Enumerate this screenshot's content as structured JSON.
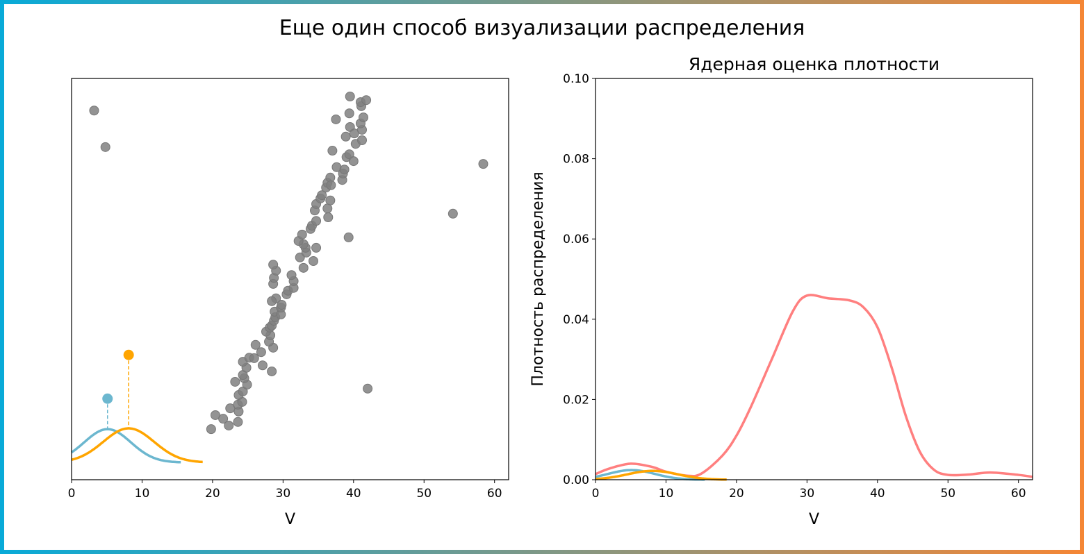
{
  "title": "Еще один способ визуализации распределения",
  "colors": {
    "border_left": "#08aad8",
    "border_right": "#f58635",
    "points": "#808080",
    "blue": "#6cb7cf",
    "orange": "#ffa500",
    "red": "#ff7f7f"
  },
  "chart_data": [
    {
      "type": "scatter",
      "title": "",
      "xlabel": "V",
      "ylabel": "",
      "xlim": [
        0,
        62
      ],
      "ylim": [
        0,
        100
      ],
      "y_ticks_shown": false,
      "xticks": [
        0,
        10,
        20,
        30,
        40,
        50,
        60
      ],
      "grid": false,
      "points": [
        [
          3.2,
          92.0
        ],
        [
          4.8,
          82.9
        ],
        [
          58.4,
          78.7
        ],
        [
          54.1,
          66.3
        ],
        [
          42.0,
          22.7
        ],
        [
          39.3,
          60.4
        ],
        [
          19.8,
          12.6
        ],
        [
          20.4,
          16.1
        ],
        [
          21.5,
          15.2
        ],
        [
          22.3,
          13.5
        ],
        [
          22.5,
          17.8
        ],
        [
          23.6,
          14.4
        ],
        [
          23.7,
          17.0
        ],
        [
          23.6,
          18.7
        ],
        [
          24.2,
          19.4
        ],
        [
          23.7,
          21.1
        ],
        [
          24.3,
          22.0
        ],
        [
          24.9,
          23.7
        ],
        [
          24.5,
          25.3
        ],
        [
          24.3,
          26.1
        ],
        [
          23.2,
          24.4
        ],
        [
          24.8,
          27.9
        ],
        [
          24.3,
          29.4
        ],
        [
          25.2,
          30.4
        ],
        [
          25.9,
          30.3
        ],
        [
          26.1,
          33.6
        ],
        [
          26.9,
          31.8
        ],
        [
          27.1,
          28.5
        ],
        [
          28.4,
          27.0
        ],
        [
          28.6,
          32.9
        ],
        [
          28.0,
          34.4
        ],
        [
          28.2,
          36.0
        ],
        [
          27.6,
          36.9
        ],
        [
          28.1,
          37.9
        ],
        [
          28.4,
          38.4
        ],
        [
          28.7,
          39.6
        ],
        [
          28.9,
          40.5
        ],
        [
          28.8,
          41.9
        ],
        [
          29.7,
          41.2
        ],
        [
          29.7,
          42.9
        ],
        [
          29.8,
          43.6
        ],
        [
          29.0,
          45.2
        ],
        [
          28.4,
          44.5
        ],
        [
          30.5,
          46.2
        ],
        [
          30.7,
          47.1
        ],
        [
          31.5,
          47.8
        ],
        [
          31.5,
          49.5
        ],
        [
          31.2,
          51.0
        ],
        [
          28.6,
          48.8
        ],
        [
          28.7,
          50.3
        ],
        [
          29.0,
          52.1
        ],
        [
          28.6,
          53.6
        ],
        [
          32.9,
          52.8
        ],
        [
          32.4,
          55.4
        ],
        [
          33.3,
          56.6
        ],
        [
          33.2,
          57.8
        ],
        [
          34.3,
          54.5
        ],
        [
          34.7,
          57.8
        ],
        [
          32.9,
          58.7
        ],
        [
          32.2,
          59.5
        ],
        [
          32.7,
          61.1
        ],
        [
          33.9,
          62.5
        ],
        [
          34.1,
          63.3
        ],
        [
          34.7,
          64.5
        ],
        [
          34.5,
          67.1
        ],
        [
          34.7,
          68.7
        ],
        [
          35.3,
          70.1
        ],
        [
          35.5,
          70.9
        ],
        [
          36.1,
          72.8
        ],
        [
          36.3,
          74.0
        ],
        [
          36.7,
          75.3
        ],
        [
          36.3,
          67.6
        ],
        [
          36.7,
          69.6
        ],
        [
          36.4,
          65.4
        ],
        [
          36.8,
          73.4
        ],
        [
          37.6,
          77.9
        ],
        [
          38.4,
          74.7
        ],
        [
          38.5,
          76.3
        ],
        [
          38.7,
          77.3
        ],
        [
          39.0,
          80.4
        ],
        [
          39.4,
          81.1
        ],
        [
          40.0,
          79.4
        ],
        [
          38.9,
          85.5
        ],
        [
          39.5,
          87.9
        ],
        [
          40.1,
          86.3
        ],
        [
          40.3,
          83.7
        ],
        [
          41.2,
          84.6
        ],
        [
          41.2,
          87.2
        ],
        [
          41.0,
          88.8
        ],
        [
          41.4,
          90.3
        ],
        [
          41.1,
          93.1
        ],
        [
          41.0,
          94.1
        ],
        [
          41.8,
          94.6
        ],
        [
          39.4,
          91.3
        ],
        [
          37.5,
          89.8
        ],
        [
          37.0,
          82.0
        ],
        [
          39.5,
          95.5
        ]
      ],
      "highlighted": [
        {
          "color": "blue",
          "x": 5.1,
          "y": 20.2
        },
        {
          "color": "orange",
          "x": 8.1,
          "y": 31.1
        }
      ],
      "kernels": [
        {
          "color": "blue",
          "center": 5.1,
          "sigma": 3.3,
          "peak": 8.3,
          "baseline": 4.3,
          "x_range": [
            0,
            15.5
          ]
        },
        {
          "color": "orange",
          "center": 8.1,
          "sigma": 3.6,
          "peak": 8.5,
          "baseline": 4.3,
          "x_range": [
            0,
            18.6
          ]
        }
      ]
    },
    {
      "type": "line",
      "title": "Ядерная оценка плотности",
      "xlabel": "V",
      "ylabel": "Плотность распределения",
      "xlim": [
        0,
        62
      ],
      "ylim": [
        0,
        0.1
      ],
      "xticks": [
        0,
        10,
        20,
        30,
        40,
        50,
        60
      ],
      "yticks": [
        "0.00",
        "0.02",
        "0.04",
        "0.06",
        "0.08",
        "0.10"
      ],
      "grid": false,
      "series": [
        {
          "color": "red",
          "x": [
            0,
            2,
            5,
            8,
            10,
            13,
            15,
            18,
            20,
            22,
            25,
            28,
            30,
            33,
            36,
            38,
            40,
            42,
            44,
            46,
            48,
            50,
            53,
            56,
            60,
            62
          ],
          "y": [
            0.0014,
            0.0028,
            0.004,
            0.0032,
            0.002,
            0.001,
            0.0015,
            0.006,
            0.011,
            0.018,
            0.03,
            0.042,
            0.0459,
            0.0452,
            0.0447,
            0.043,
            0.038,
            0.028,
            0.016,
            0.007,
            0.0025,
            0.0012,
            0.0013,
            0.0018,
            0.0012,
            0.0007
          ]
        },
        {
          "color": "blue",
          "kernel": {
            "center": 5.1,
            "sigma": 3.3,
            "peak": 0.0024,
            "x_range": [
              0,
              15.5
            ]
          }
        },
        {
          "color": "orange",
          "kernel": {
            "center": 8.1,
            "sigma": 3.6,
            "peak": 0.0022,
            "x_range": [
              0,
              18.6
            ]
          }
        }
      ]
    }
  ]
}
